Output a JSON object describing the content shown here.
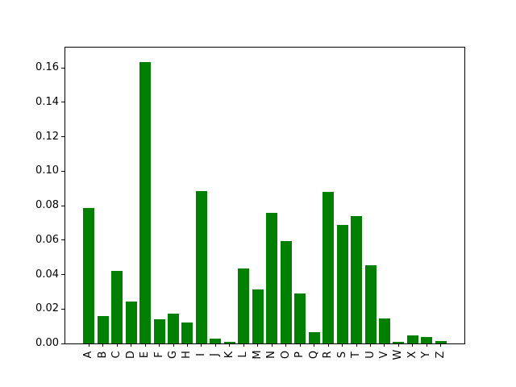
{
  "figure": {
    "background": "#ffffff"
  },
  "chart_data": {
    "type": "bar",
    "title": "",
    "xlabel": "",
    "ylabel": "",
    "categories": [
      "A",
      "B",
      "C",
      "D",
      "E",
      "F",
      "G",
      "H",
      "I",
      "J",
      "K",
      "L",
      "M",
      "N",
      "O",
      "P",
      "Q",
      "R",
      "S",
      "T",
      "U",
      "V",
      "W",
      "X",
      "Y",
      "Z"
    ],
    "values": [
      0.0785,
      0.0158,
      0.0421,
      0.0244,
      0.1635,
      0.0139,
      0.0172,
      0.0122,
      0.0885,
      0.0028,
      0.001,
      0.0434,
      0.0314,
      0.0756,
      0.0593,
      0.0291,
      0.0066,
      0.0879,
      0.0688,
      0.0739,
      0.0455,
      0.0145,
      0.0008,
      0.0045,
      0.0038,
      0.0015
    ],
    "ylim": [
      0,
      0.1717
    ],
    "yticks": [
      0.0,
      0.02,
      0.04,
      0.06,
      0.08,
      0.1,
      0.12,
      0.14,
      0.16
    ],
    "ytick_labels": [
      "0.00",
      "0.02",
      "0.04",
      "0.06",
      "0.08",
      "0.10",
      "0.12",
      "0.14",
      "0.16"
    ],
    "xtick_rotation_deg": 90,
    "bar_color": "#008000",
    "axis_color": "#000000",
    "grid": false,
    "legend": null
  }
}
